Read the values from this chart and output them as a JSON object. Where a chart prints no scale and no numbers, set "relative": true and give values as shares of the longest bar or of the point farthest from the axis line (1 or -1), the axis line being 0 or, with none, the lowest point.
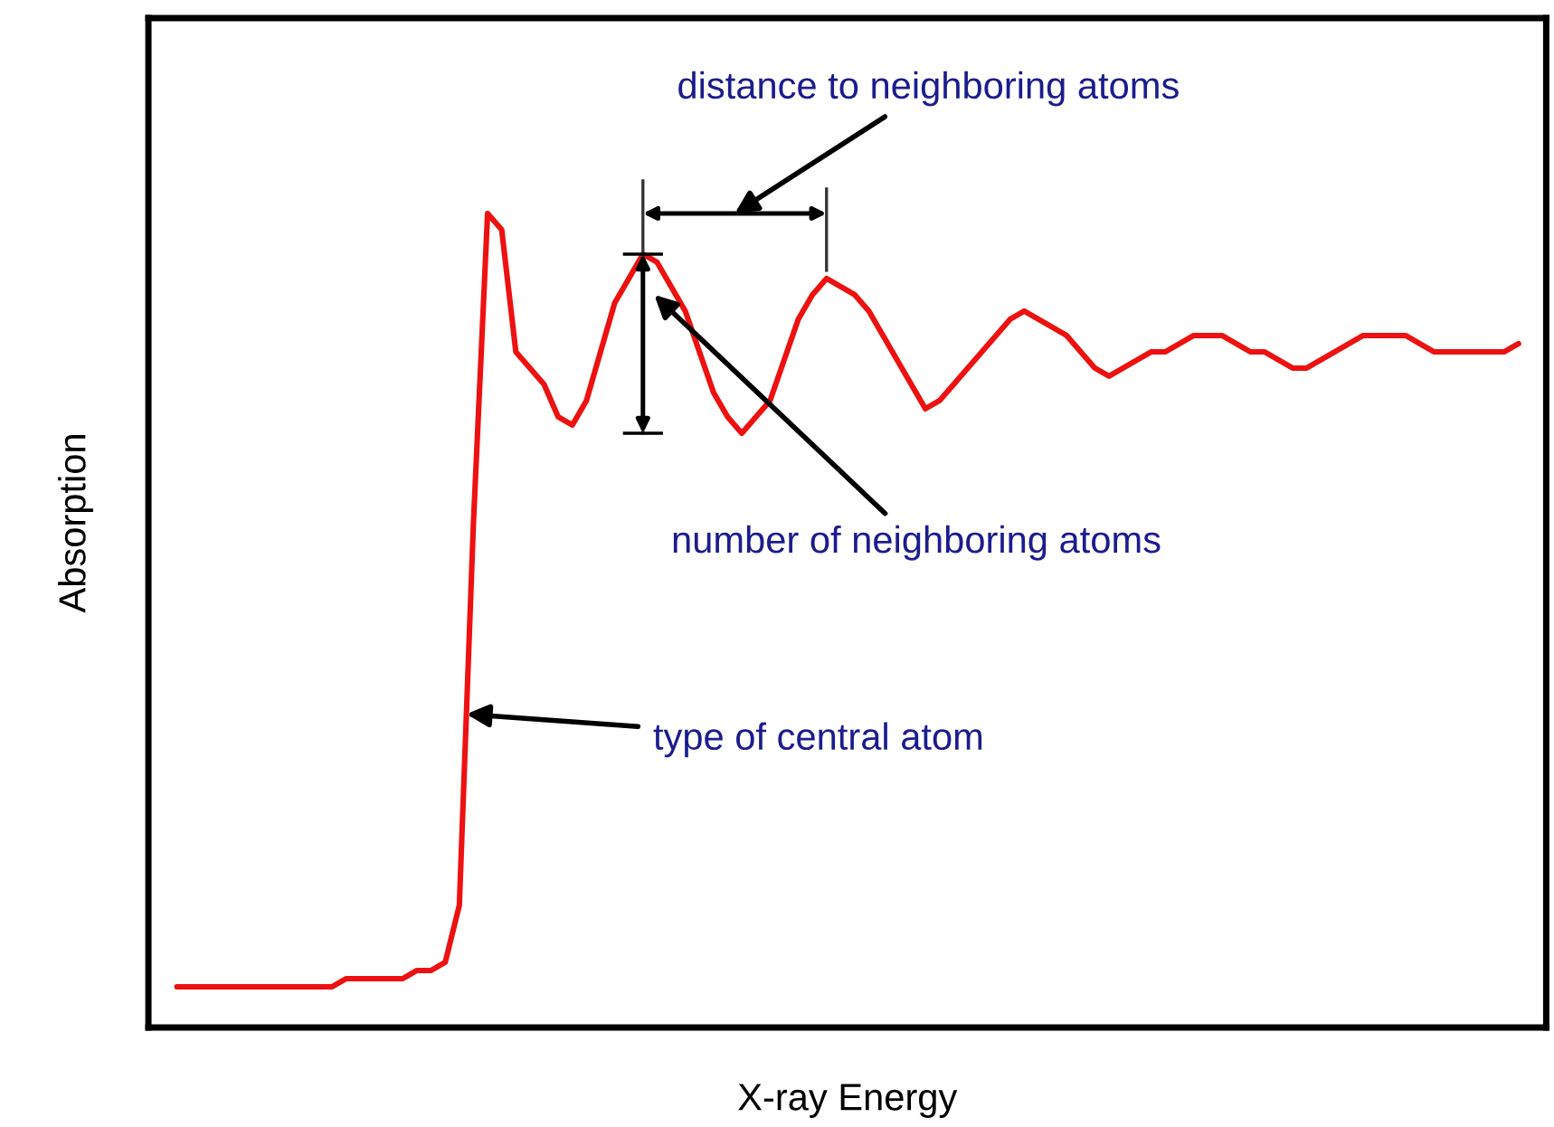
{
  "chart_data": {
    "type": "line",
    "relative": true,
    "xlabel": "X-ray Energy",
    "ylabel": "Absorption",
    "tick_labels": false,
    "marker": "none",
    "line_style": "solid",
    "categories": [
      null,
      null,
      null,
      null,
      null,
      null,
      null,
      null,
      null,
      null,
      null,
      null,
      null,
      null,
      null,
      null,
      null,
      null,
      null,
      null,
      null,
      null,
      null,
      null,
      null,
      null,
      null,
      null,
      null,
      null,
      null,
      null,
      null,
      null,
      null,
      null,
      null,
      null,
      null,
      null,
      null,
      null,
      null,
      null,
      null,
      null,
      null,
      null,
      null,
      null,
      null,
      null,
      null,
      null,
      null,
      null,
      null,
      null,
      null,
      null,
      null,
      null,
      null,
      null,
      null,
      null,
      null,
      null,
      null,
      null,
      null,
      null,
      null,
      null,
      null,
      null,
      null,
      null,
      null,
      null,
      null,
      null,
      null,
      null,
      null,
      null,
      null,
      null,
      null,
      null,
      null,
      null,
      null,
      null,
      null,
      null
    ],
    "series": [
      {
        "color": "#ee1111",
        "values": [
          0.05,
          0.05,
          0.05,
          0.05,
          0.05,
          0.05,
          0.05,
          0.05,
          0.05,
          0.05,
          0.05,
          0.05,
          0.06,
          0.06,
          0.06,
          0.06,
          0.06,
          0.07,
          0.07,
          0.08,
          0.15,
          0.62,
          1.0,
          0.98,
          0.83,
          0.81,
          0.79,
          0.75,
          0.74,
          0.77,
          0.83,
          0.89,
          0.92,
          0.95,
          0.94,
          0.91,
          0.88,
          0.83,
          0.78,
          0.75,
          0.73,
          0.75,
          0.77,
          0.82,
          0.87,
          0.9,
          0.92,
          0.91,
          0.9,
          0.88,
          0.85,
          0.82,
          0.79,
          0.76,
          0.77,
          0.79,
          0.81,
          0.83,
          0.85,
          0.87,
          0.88,
          0.87,
          0.86,
          0.85,
          0.83,
          0.81,
          0.8,
          0.81,
          0.82,
          0.83,
          0.83,
          0.84,
          0.85,
          0.85,
          0.85,
          0.84,
          0.83,
          0.83,
          0.82,
          0.81,
          0.81,
          0.82,
          0.83,
          0.84,
          0.85,
          0.85,
          0.85,
          0.85,
          0.84,
          0.83,
          0.83,
          0.83,
          0.83,
          0.83,
          0.83,
          0.84
        ]
      }
    ],
    "annotations": [
      "distance to neighboring atoms",
      "number of neighboring atoms",
      "type of central atom"
    ]
  }
}
